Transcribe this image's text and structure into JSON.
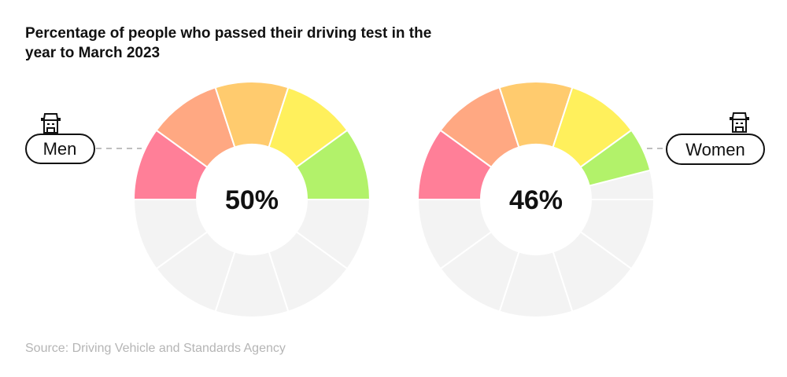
{
  "title": "Percentage of people who passed their driving test in the year to March 2023",
  "source": "Source: Driving Vehicle and Standards Agency",
  "colors": {
    "segments": [
      "#ff7f98",
      "#ffa882",
      "#ffcb6e",
      "#fff05c",
      "#b2f26a"
    ],
    "empty": "#f3f3f3"
  },
  "chart_data": {
    "type": "pie",
    "subtype": "segmented-donut-gauge",
    "segments_total": 10,
    "series": [
      {
        "name": "Men",
        "value": 50,
        "label": "50%",
        "icon": "person-with-hat-icon"
      },
      {
        "name": "Women",
        "value": 46,
        "label": "46%",
        "icon": "person-with-hat-icon"
      }
    ]
  }
}
